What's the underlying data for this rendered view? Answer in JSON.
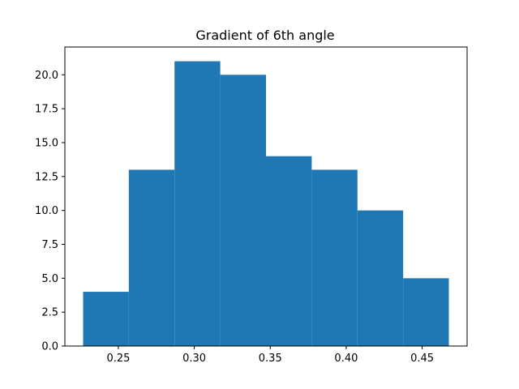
{
  "chart_data": {
    "type": "bar",
    "title": "Gradient of 6th angle",
    "xlabel": "",
    "ylabel": "",
    "bins": [
      {
        "x0": 0.2268,
        "x1": 0.2569,
        "count": 4
      },
      {
        "x0": 0.2569,
        "x1": 0.287,
        "count": 13
      },
      {
        "x0": 0.287,
        "x1": 0.3171,
        "count": 21
      },
      {
        "x0": 0.3171,
        "x1": 0.3472,
        "count": 20
      },
      {
        "x0": 0.3472,
        "x1": 0.3773,
        "count": 14
      },
      {
        "x0": 0.3773,
        "x1": 0.4074,
        "count": 13
      },
      {
        "x0": 0.4074,
        "x1": 0.4375,
        "count": 10
      },
      {
        "x0": 0.4375,
        "x1": 0.4676,
        "count": 5
      }
    ],
    "xlim": [
      0.2148,
      0.4796
    ],
    "ylim": [
      0,
      22.05
    ],
    "xticks": [
      0.25,
      0.3,
      0.35,
      0.4,
      0.45
    ],
    "xtick_labels": [
      "0.25",
      "0.30",
      "0.35",
      "0.40",
      "0.45"
    ],
    "yticks": [
      0.0,
      2.5,
      5.0,
      7.5,
      10.0,
      12.5,
      15.0,
      17.5,
      20.0
    ],
    "ytick_labels": [
      "0.0",
      "2.5",
      "5.0",
      "7.5",
      "10.0",
      "12.5",
      "15.0",
      "17.5",
      "20.0"
    ],
    "bar_color": "#1f77b4",
    "grid": false,
    "legend": "none"
  }
}
